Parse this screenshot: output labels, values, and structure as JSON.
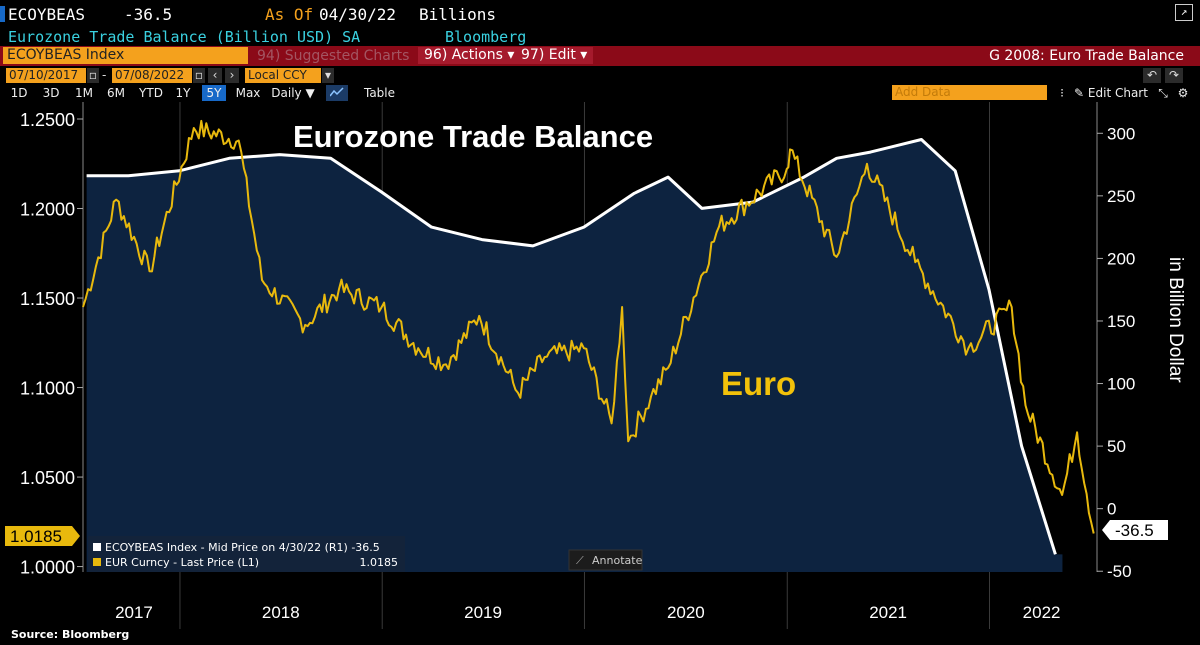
{
  "header": {
    "ticker": "ECOYBEAS",
    "value": "-36.5",
    "as_of_label": "As Of",
    "as_of_date": "04/30/22",
    "unit": "Billions",
    "description": "Eurozone Trade Balance (Billion USD) SA",
    "source_tag": "Bloomberg"
  },
  "toolbar": {
    "security": "ECOYBEAS Index",
    "suggested": "94) Suggested Charts",
    "actions": "96) Actions ▾",
    "edit": "97) Edit ▾",
    "chart_title": "G 2008: Euro Trade Balance",
    "date_from": "07/10/2017",
    "date_to": "07/08/2022",
    "currency": "Local CCY",
    "ranges": [
      "1D",
      "3D",
      "1M",
      "6M",
      "YTD",
      "1Y",
      "5Y",
      "Max"
    ],
    "selected_range": "5Y",
    "frequency": "Daily ▼",
    "table": "Table",
    "add_data": "Add Data",
    "edit_chart": "✎ Edit Chart"
  },
  "colors": {
    "euro_line": "#e8b90d",
    "trade_line": "#ffffff",
    "area_fill": "#0d2340",
    "accent_orange": "#f4a11d",
    "header_red": "#8b0a18"
  },
  "annotations": {
    "main_title": "Eurozone Trade Balance",
    "euro_label": "Euro",
    "right_axis_title": "in Billion Dollar",
    "annotate": "Annotate",
    "source": "Source: Bloomberg",
    "last_left": "1.0185",
    "last_right": "-36.5"
  },
  "legend": [
    {
      "label": "ECOYBEAS Index - Mid Price on 4/30/22 (R1) -36.5",
      "value": ""
    },
    {
      "label": "EUR Curncy - Last Price (L1)",
      "value": "1.0185"
    }
  ],
  "chart_data": {
    "type": "line",
    "title": "Eurozone Trade Balance",
    "x_tick_labels": [
      "2017",
      "2018",
      "2019",
      "2020",
      "2021",
      "2022"
    ],
    "left_axis": {
      "ticks": [
        "1.2500",
        "1.2000",
        "1.1500",
        "1.1000",
        "1.0500",
        "1.0000"
      ],
      "range": [
        0.9925,
        1.2595
      ]
    },
    "right_axis": {
      "title": "in Billion Dollar",
      "ticks": [
        "300",
        "250",
        "200",
        "150",
        "100",
        "50",
        "0",
        "-50"
      ],
      "range": [
        -57,
        325
      ]
    },
    "series": [
      {
        "name": "ECOYBEAS Index - Mid Price",
        "axis": "right",
        "style": "area",
        "points": [
          [
            "2017-07-31",
            266
          ],
          [
            "2017-09-30",
            266
          ],
          [
            "2017-12-31",
            270
          ],
          [
            "2018-03-31",
            280
          ],
          [
            "2018-06-30",
            283
          ],
          [
            "2018-09-30",
            280
          ],
          [
            "2018-12-31",
            253
          ],
          [
            "2019-03-31",
            225
          ],
          [
            "2019-06-30",
            215
          ],
          [
            "2019-09-30",
            210
          ],
          [
            "2019-12-31",
            225
          ],
          [
            "2020-03-31",
            252
          ],
          [
            "2020-05-31",
            265
          ],
          [
            "2020-07-31",
            240
          ],
          [
            "2020-10-31",
            245
          ],
          [
            "2021-01-31",
            265
          ],
          [
            "2021-03-31",
            280
          ],
          [
            "2021-05-31",
            285
          ],
          [
            "2021-08-31",
            295
          ],
          [
            "2021-10-31",
            270
          ],
          [
            "2021-12-31",
            175
          ],
          [
            "2022-02-28",
            50
          ],
          [
            "2022-04-30",
            -36.5
          ]
        ]
      },
      {
        "name": "EUR Curncy - Last Price",
        "axis": "left",
        "style": "line",
        "points": [
          [
            "2017-07-10",
            1.145
          ],
          [
            "2017-09-08",
            1.205
          ],
          [
            "2017-11-07",
            1.165
          ],
          [
            "2018-01-26",
            1.245
          ],
          [
            "2018-04-17",
            1.238
          ],
          [
            "2018-05-29",
            1.16
          ],
          [
            "2018-08-15",
            1.135
          ],
          [
            "2018-10-15",
            1.155
          ],
          [
            "2018-12-31",
            1.145
          ],
          [
            "2019-03-07",
            1.122
          ],
          [
            "2019-04-26",
            1.113
          ],
          [
            "2019-06-25",
            1.14
          ],
          [
            "2019-09-03",
            1.097
          ],
          [
            "2019-10-21",
            1.117
          ],
          [
            "2019-12-31",
            1.122
          ],
          [
            "2020-02-19",
            1.08
          ],
          [
            "2020-03-09",
            1.145
          ],
          [
            "2020-03-20",
            1.07
          ],
          [
            "2020-04-30",
            1.095
          ],
          [
            "2020-05-31",
            1.111
          ],
          [
            "2020-08-31",
            1.19
          ],
          [
            "2020-12-31",
            1.222
          ],
          [
            "2021-01-06",
            1.233
          ],
          [
            "2021-03-31",
            1.173
          ],
          [
            "2021-05-25",
            1.225
          ],
          [
            "2021-08-20",
            1.17
          ],
          [
            "2021-11-24",
            1.122
          ],
          [
            "2022-02-10",
            1.145
          ],
          [
            "2022-03-07",
            1.09
          ],
          [
            "2022-05-12",
            1.04
          ],
          [
            "2022-06-08",
            1.075
          ],
          [
            "2022-07-08",
            1.0185
          ]
        ]
      }
    ]
  }
}
